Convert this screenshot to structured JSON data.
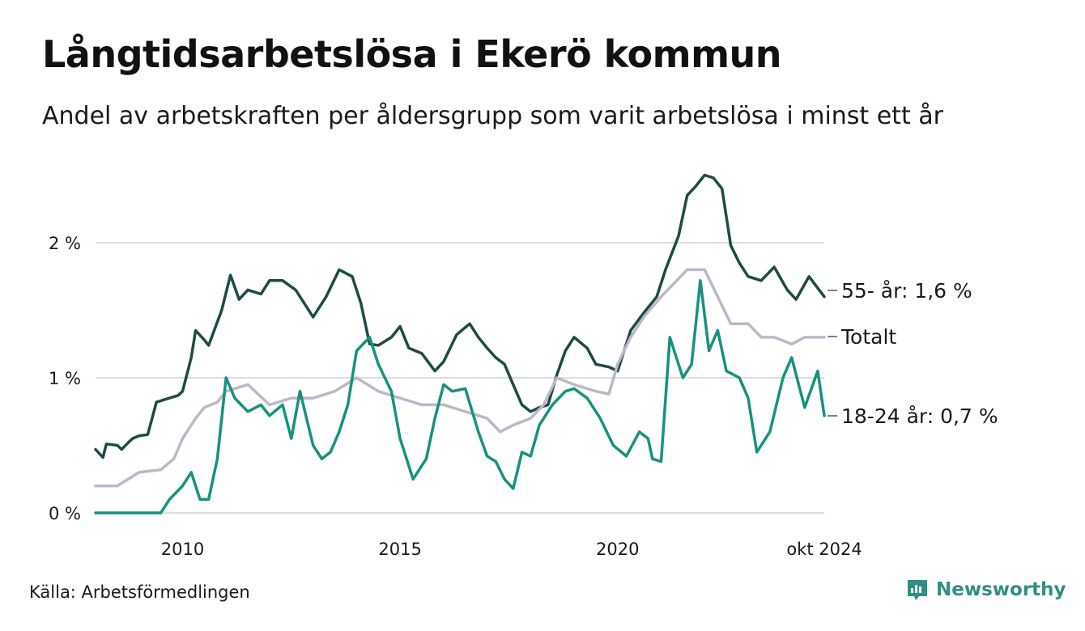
{
  "title": "Långtidsarbetslösa i Ekerö kommun",
  "subtitle": "Andel av arbetskraften per åldersgrupp som varit arbetslösa i minst ett år",
  "source": "Källa: Arbetsförmedlingen",
  "brand": "Newsworthy",
  "colors": {
    "older": "#1f4b45",
    "total": "#bdb7c8",
    "young": "#17927f",
    "grid": "#dddddd",
    "brand": "#2f8f83"
  },
  "chart_data": {
    "type": "line",
    "title": "Långtidsarbetslösa i Ekerö kommun",
    "xlabel": "",
    "ylabel": "",
    "xlim": [
      2008.0,
      2024.75
    ],
    "ylim": [
      0,
      2.6
    ],
    "grid": true,
    "y_ticks": [
      {
        "value": 0,
        "label": "0 %"
      },
      {
        "value": 1,
        "label": "1 %"
      },
      {
        "value": 2,
        "label": "2 %"
      }
    ],
    "x_ticks": [
      {
        "value": 2010,
        "label": "2010"
      },
      {
        "value": 2015,
        "label": "2015"
      },
      {
        "value": 2020,
        "label": "2020"
      },
      {
        "value": 2024.75,
        "label": "okt 2024"
      }
    ],
    "series": [
      {
        "name": "55- år",
        "end_label": "55- år: 1,6 %",
        "color_key": "older",
        "x": [
          2008.0,
          2008.17,
          2008.25,
          2008.5,
          2008.6,
          2008.75,
          2008.85,
          2009.0,
          2009.2,
          2009.4,
          2009.5,
          2009.6,
          2009.8,
          2009.9,
          2010.0,
          2010.2,
          2010.3,
          2010.5,
          2010.6,
          2010.9,
          2011.1,
          2011.3,
          2011.5,
          2011.8,
          2012.0,
          2012.3,
          2012.6,
          2013.0,
          2013.3,
          2013.6,
          2013.9,
          2014.1,
          2014.3,
          2014.5,
          2014.8,
          2015.0,
          2015.2,
          2015.5,
          2015.8,
          2016.0,
          2016.3,
          2016.6,
          2016.8,
          2017.0,
          2017.2,
          2017.4,
          2017.6,
          2017.8,
          2018.0,
          2018.2,
          2018.4,
          2018.6,
          2018.8,
          2019.0,
          2019.3,
          2019.5,
          2019.8,
          2020.0,
          2020.3,
          2020.6,
          2020.9,
          2021.1,
          2021.4,
          2021.6,
          2021.8,
          2022.0,
          2022.2,
          2022.4,
          2022.6,
          2022.8,
          2023.0,
          2023.3,
          2023.6,
          2023.9,
          2024.1,
          2024.4,
          2024.75
        ],
        "y": [
          0.47,
          0.41,
          0.51,
          0.5,
          0.47,
          0.52,
          0.55,
          0.57,
          0.58,
          0.82,
          0.83,
          0.84,
          0.86,
          0.87,
          0.9,
          1.15,
          1.35,
          1.28,
          1.24,
          1.5,
          1.76,
          1.58,
          1.65,
          1.62,
          1.72,
          1.72,
          1.65,
          1.45,
          1.6,
          1.8,
          1.75,
          1.55,
          1.25,
          1.24,
          1.3,
          1.38,
          1.22,
          1.18,
          1.05,
          1.12,
          1.32,
          1.4,
          1.3,
          1.22,
          1.15,
          1.1,
          0.95,
          0.8,
          0.75,
          0.78,
          0.8,
          1.02,
          1.2,
          1.3,
          1.22,
          1.1,
          1.08,
          1.05,
          1.35,
          1.48,
          1.6,
          1.8,
          2.05,
          2.35,
          2.42,
          2.5,
          2.48,
          2.4,
          1.98,
          1.85,
          1.75,
          1.72,
          1.82,
          1.65,
          1.58,
          1.75,
          1.6
        ]
      },
      {
        "name": "Totalt",
        "end_label": "Totalt",
        "color_key": "total",
        "x": [
          2008.0,
          2008.5,
          2009.0,
          2009.5,
          2009.8,
          2010.0,
          2010.3,
          2010.5,
          2010.8,
          2011.0,
          2011.5,
          2012.0,
          2012.5,
          2013.0,
          2013.5,
          2014.0,
          2014.5,
          2015.0,
          2015.5,
          2016.0,
          2016.5,
          2017.0,
          2017.3,
          2017.6,
          2018.0,
          2018.3,
          2018.6,
          2019.0,
          2019.5,
          2019.8,
          2020.0,
          2020.3,
          2020.6,
          2021.0,
          2021.3,
          2021.6,
          2022.0,
          2022.3,
          2022.6,
          2023.0,
          2023.3,
          2023.6,
          2024.0,
          2024.3,
          2024.75
        ],
        "y": [
          0.2,
          0.2,
          0.3,
          0.32,
          0.4,
          0.55,
          0.7,
          0.78,
          0.82,
          0.9,
          0.95,
          0.8,
          0.85,
          0.85,
          0.9,
          1.0,
          0.9,
          0.85,
          0.8,
          0.8,
          0.75,
          0.7,
          0.6,
          0.65,
          0.7,
          0.8,
          1.0,
          0.95,
          0.9,
          0.88,
          1.1,
          1.3,
          1.45,
          1.6,
          1.7,
          1.8,
          1.8,
          1.6,
          1.4,
          1.4,
          1.3,
          1.3,
          1.25,
          1.3,
          1.3
        ]
      },
      {
        "name": "18-24 år",
        "end_label": "18-24 år: 0,7 %",
        "color_key": "young",
        "x": [
          2008.0,
          2008.5,
          2009.0,
          2009.2,
          2009.5,
          2009.7,
          2010.0,
          2010.2,
          2010.4,
          2010.6,
          2010.8,
          2011.0,
          2011.2,
          2011.5,
          2011.8,
          2012.0,
          2012.3,
          2012.5,
          2012.7,
          2013.0,
          2013.2,
          2013.4,
          2013.6,
          2013.8,
          2014.0,
          2014.3,
          2014.5,
          2014.8,
          2015.0,
          2015.3,
          2015.6,
          2015.8,
          2016.0,
          2016.2,
          2016.5,
          2016.8,
          2017.0,
          2017.2,
          2017.4,
          2017.6,
          2017.8,
          2018.0,
          2018.2,
          2018.5,
          2018.8,
          2019.0,
          2019.3,
          2019.6,
          2019.9,
          2020.2,
          2020.5,
          2020.7,
          2020.8,
          2021.0,
          2021.2,
          2021.5,
          2021.7,
          2021.9,
          2022.1,
          2022.3,
          2022.5,
          2022.8,
          2023.0,
          2023.2,
          2023.5,
          2023.8,
          2024.0,
          2024.3,
          2024.6,
          2024.75
        ],
        "y": [
          0.0,
          0.0,
          0.0,
          0.0,
          0.0,
          0.1,
          0.2,
          0.3,
          0.1,
          0.1,
          0.4,
          1.0,
          0.85,
          0.75,
          0.8,
          0.72,
          0.8,
          0.55,
          0.9,
          0.5,
          0.4,
          0.45,
          0.6,
          0.8,
          1.2,
          1.3,
          1.1,
          0.9,
          0.55,
          0.25,
          0.4,
          0.7,
          0.95,
          0.9,
          0.92,
          0.6,
          0.42,
          0.38,
          0.25,
          0.18,
          0.45,
          0.42,
          0.65,
          0.8,
          0.9,
          0.92,
          0.85,
          0.7,
          0.5,
          0.42,
          0.6,
          0.55,
          0.4,
          0.38,
          1.3,
          1.0,
          1.1,
          1.72,
          1.2,
          1.35,
          1.05,
          1.0,
          0.85,
          0.45,
          0.6,
          1.0,
          1.15,
          0.78,
          1.05,
          0.72
        ]
      }
    ]
  }
}
